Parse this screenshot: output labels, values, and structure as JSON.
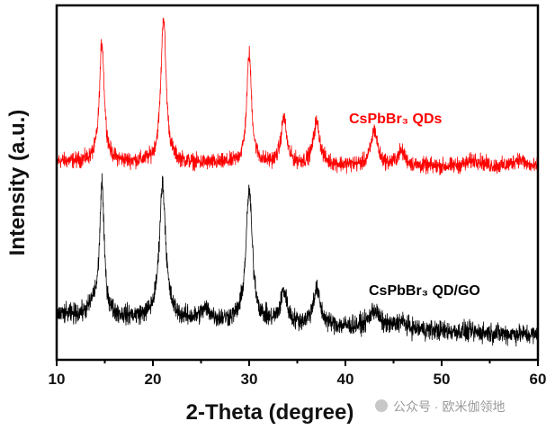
{
  "chart_data": {
    "type": "line",
    "xlabel": "2-Theta (degree)",
    "ylabel": "Intensity (a.u.)",
    "xlim": [
      10,
      60
    ],
    "ylim": [
      0,
      100
    ],
    "xticks": [
      10,
      20,
      30,
      40,
      50,
      60
    ],
    "yticks": [],
    "grid": false,
    "series": [
      {
        "name": "CsPbBr₃ QDs",
        "color": "#ff0000",
        "baseline_start": 56,
        "baseline_end": 54,
        "noise": 1.6,
        "peaks": [
          {
            "x": 14.7,
            "height": 34,
            "fwhm": 0.6
          },
          {
            "x": 21.1,
            "height": 41,
            "fwhm": 0.65
          },
          {
            "x": 30.0,
            "height": 31,
            "fwhm": 0.6
          },
          {
            "x": 33.6,
            "height": 13,
            "fwhm": 0.7
          },
          {
            "x": 37.0,
            "height": 12,
            "fwhm": 0.8
          },
          {
            "x": 43.0,
            "height": 10,
            "fwhm": 0.8
          },
          {
            "x": 45.8,
            "height": 4,
            "fwhm": 1.0
          },
          {
            "x": 53.5,
            "height": 2,
            "fwhm": 2.0
          },
          {
            "x": 58.0,
            "height": 2.5,
            "fwhm": 1.5
          }
        ]
      },
      {
        "name": "CsPbBr₃ QD/GO",
        "color": "#000000",
        "baseline_start": 12.7,
        "baseline_end": 7,
        "noise": 2.0,
        "peaks": [
          {
            "x": 13.8,
            "height": 3,
            "fwhm": 1.0
          },
          {
            "x": 14.7,
            "height": 37,
            "fwhm": 0.55
          },
          {
            "x": 21.0,
            "height": 38,
            "fwhm": 0.8
          },
          {
            "x": 25.5,
            "height": 3,
            "fwhm": 1.2
          },
          {
            "x": 30.0,
            "height": 37,
            "fwhm": 0.8
          },
          {
            "x": 33.6,
            "height": 9,
            "fwhm": 0.8
          },
          {
            "x": 37.0,
            "height": 10,
            "fwhm": 0.9
          },
          {
            "x": 43.0,
            "height": 5,
            "fwhm": 1.2
          },
          {
            "x": 45.8,
            "height": 2,
            "fwhm": 1.2
          }
        ]
      }
    ]
  },
  "watermark": "公众号 · 欧米伽领地"
}
